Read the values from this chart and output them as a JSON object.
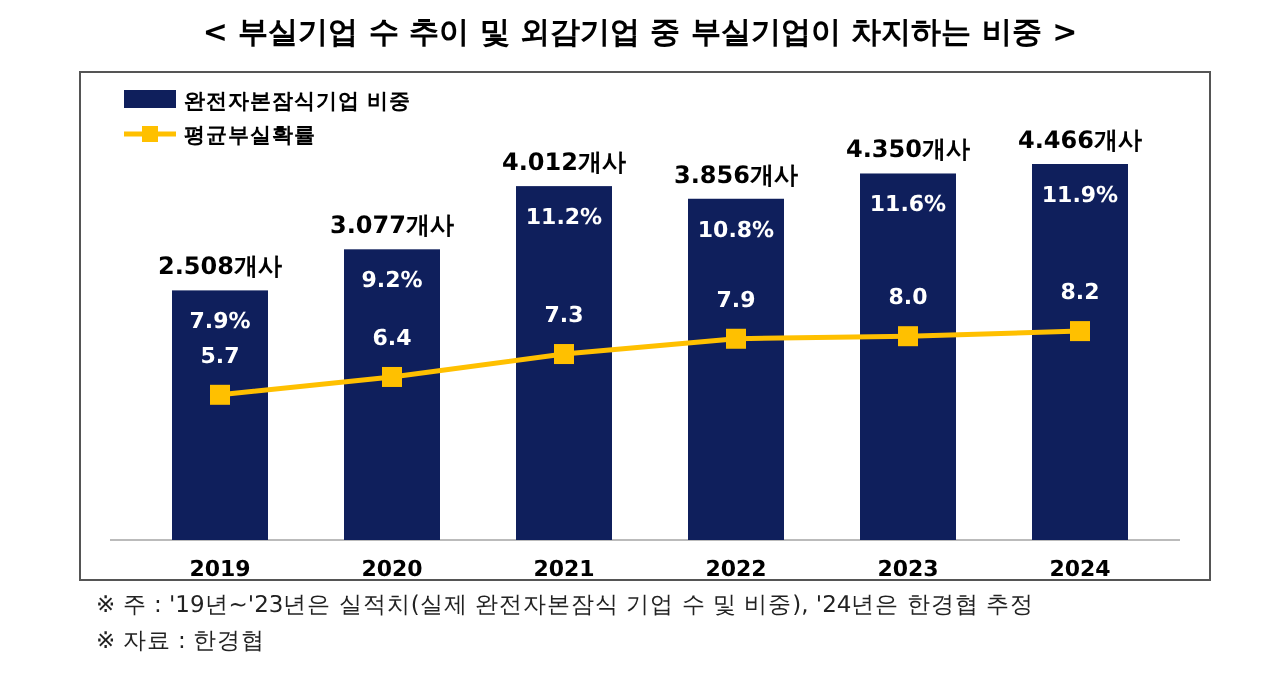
{
  "chart_data": {
    "type": "bar",
    "title": "< 부실기업 수 추이 및 외감기업 중 부실기업이 차지하는 비중 >",
    "categories": [
      "2019",
      "2020",
      "2021",
      "2022",
      "2023",
      "2024"
    ],
    "series": [
      {
        "name": "완전자본잠식기업 비중",
        "color": "#0f1f5c",
        "values": [
          7.9,
          9.2,
          11.2,
          10.8,
          11.6,
          11.9
        ],
        "value_labels": [
          "7.9%",
          "9.2%",
          "11.2%",
          "10.8%",
          "11.6%",
          "11.9%"
        ]
      },
      {
        "name": "평균부실확률",
        "type": "line",
        "axis": "y2",
        "color": "#ffc000",
        "marker": "square",
        "values": [
          5.7,
          6.4,
          7.3,
          7.9,
          8.0,
          8.2
        ],
        "value_labels": [
          "5.7",
          "6.4",
          "7.3",
          "7.9",
          "8.0",
          "8.2"
        ]
      }
    ],
    "legend": "top left",
    "tick_labels": "x",
    "annotations": [
      "2.508개사",
      "3.077개사",
      "4.012개사",
      "3.856개사",
      "4.350개사",
      "4.466개사",
      "※ 주 : '19년~'23년은 실적치(실제 완전자본잠식 기업 수 및 비중), '24년은 한경협 추정",
      "※ 자료 : 한경협"
    ]
  }
}
